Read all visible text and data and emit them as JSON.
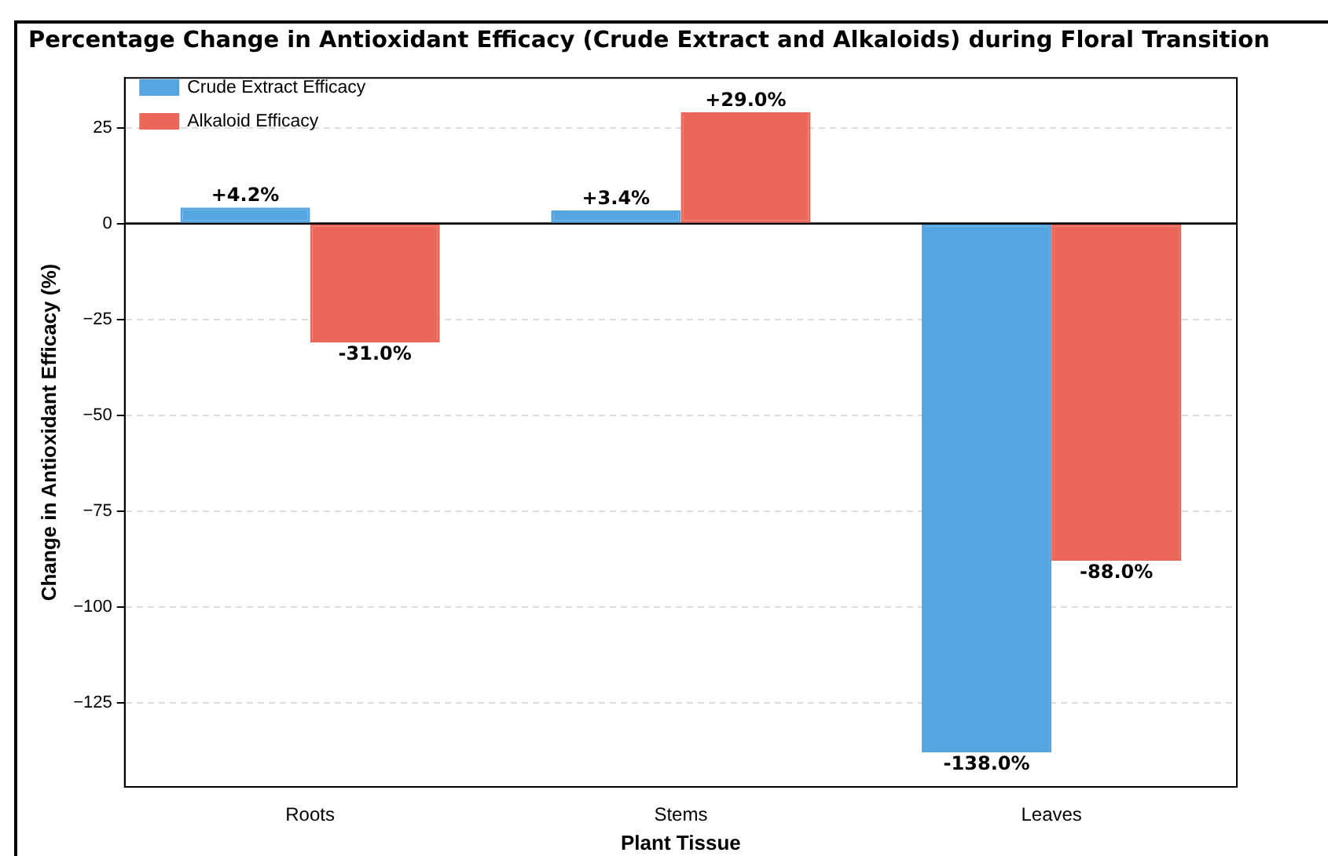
{
  "chart_data": {
    "type": "bar",
    "title": "Percentage Change in Antioxidant Efficacy (Crude Extract and Alkaloids) during Floral Transition",
    "xlabel": "Plant Tissue",
    "ylabel": "Change in Antioxidant Efficacy (%)",
    "categories": [
      "Roots",
      "Stems",
      "Leaves"
    ],
    "series": [
      {
        "name": "Crude Extract Efficacy",
        "color": "#55a6e0",
        "values": [
          4.2,
          3.4,
          -138
        ],
        "value_labels": [
          "+4.2%",
          "+3.4%",
          "-138.0%"
        ]
      },
      {
        "name": "Alkaloid Efficacy",
        "color": "#eb6759",
        "values": [
          -31,
          29,
          -88
        ],
        "value_labels": [
          "-31.0%",
          "+29.0%",
          "-88.0%"
        ]
      }
    ],
    "ylim": [
      -147,
      38
    ],
    "yticks": [
      {
        "value": -125,
        "label": "−125"
      },
      {
        "value": -100,
        "label": "−100"
      },
      {
        "value": -75,
        "label": "−75"
      },
      {
        "value": -50,
        "label": "−50"
      },
      {
        "value": -25,
        "label": "−25"
      },
      0,
      25
    ],
    "ref_lines": [
      {
        "axis": "y",
        "value": 0,
        "color": "#000000"
      }
    ],
    "grid": "y",
    "legend": "top left"
  }
}
